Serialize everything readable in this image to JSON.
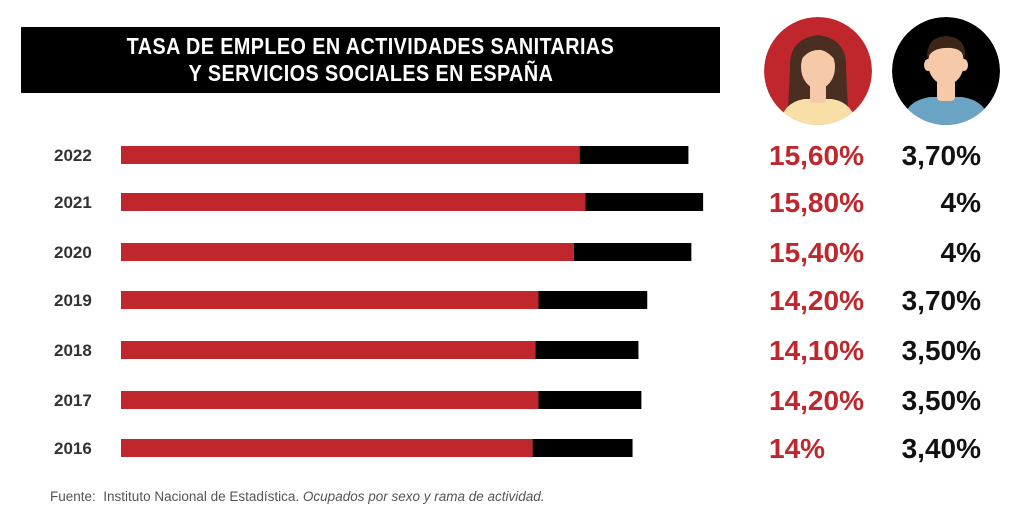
{
  "title_lines": [
    "TASA DE EMPLEO EN ACTIVIDADES SANITARIAS",
    "Y SERVICIOS SOCIALES EN ESPAÑA"
  ],
  "source": {
    "prefix": "Fuente:",
    "institution": "Instituto Nacional de Estadística.",
    "note": "Ocupados por sexo y rama de actividad."
  },
  "colors": {
    "women": "#c0272d",
    "men": "#000000",
    "women_avatar_bg": "#c0272d",
    "men_avatar_bg": "#000000",
    "skin": "#f6c9a8",
    "woman_hair": "#4a2e22",
    "woman_shirt": "#f8dfa8",
    "man_hair": "#3d2418",
    "man_shirt": "#6ba3c4"
  },
  "icons": {
    "women": "woman-avatar-icon",
    "men": "man-avatar-icon"
  },
  "chart_data": {
    "type": "bar",
    "orientation": "horizontal",
    "stacked": true,
    "categories": [
      "2022",
      "2021",
      "2020",
      "2019",
      "2018",
      "2017",
      "2016"
    ],
    "series": [
      {
        "values": [
          15.6,
          15.8,
          15.4,
          14.2,
          14.1,
          14.2,
          14.0
        ]
      },
      {
        "values": [
          3.7,
          4.0,
          4.0,
          3.7,
          3.5,
          3.5,
          3.4
        ]
      }
    ],
    "value_labels": {
      "women": [
        "15,60%",
        "15,80%",
        "15,40%",
        "14,20%",
        "14,10%",
        "14,20%",
        "14%"
      ],
      "men": [
        "3,70%",
        "4%",
        "4%",
        "3,70%",
        "3,50%",
        "3,50%",
        "3,40%"
      ]
    },
    "legend": "icons-top-right",
    "grid": false
  }
}
